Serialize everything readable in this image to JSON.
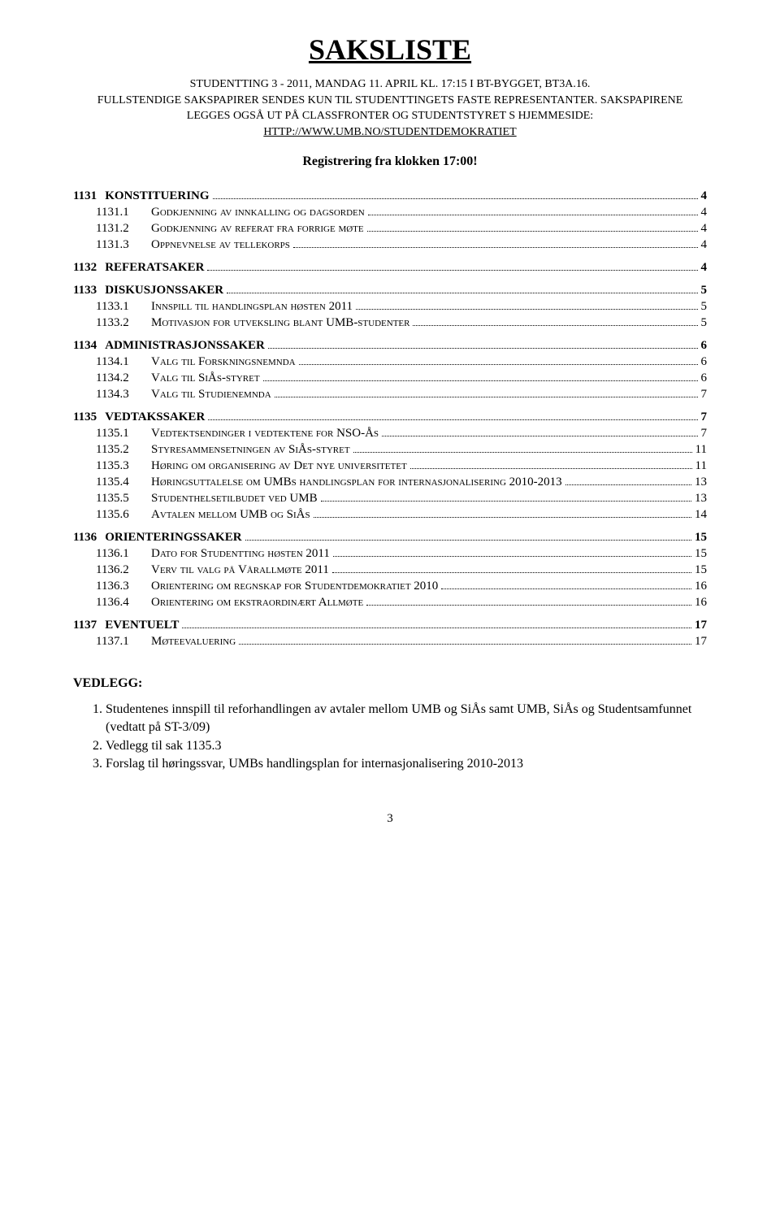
{
  "title": "SAKSLISTE",
  "subtitle_lines": [
    "STUDENTTING 3 - 2011, MANDAG 11. APRIL KL. 17:15 I BT-BYGGET, BT3A.16.",
    "FULLSTENDIGE SAKSPAPIRER SENDES KUN TIL STUDENTTINGETS FASTE REPRESENTANTER. SAKSPAPIRENE",
    "LEGGES OGSÅ UT PÅ CLASSFRONTER OG STUDENTSTYRET S HJEMMESIDE:"
  ],
  "subtitle_link": "HTTP://WWW.UMB.NO/STUDENTDEMOKRATIET",
  "registration": "Registrering fra klokken 17:00!",
  "toc": [
    {
      "level": 1,
      "num": "1131",
      "label": "KONSTITUERING",
      "page": "4"
    },
    {
      "level": 2,
      "num": "1131.1",
      "label": "Godkjenning av innkalling og dagsorden",
      "page": "4"
    },
    {
      "level": 2,
      "num": "1131.2",
      "label": "Godkjenning av referat fra forrige møte",
      "page": "4"
    },
    {
      "level": 2,
      "num": "1131.3",
      "label": "Oppnevnelse av tellekorps",
      "page": "4"
    },
    {
      "level": 1,
      "num": "1132",
      "label": "REFERATSAKER",
      "page": "4"
    },
    {
      "level": 1,
      "num": "1133",
      "label": "DISKUSJONSSAKER",
      "page": "5"
    },
    {
      "level": 2,
      "num": "1133.1",
      "label": "Innspill til handlingsplan høsten 2011",
      "page": "5"
    },
    {
      "level": 2,
      "num": "1133.2",
      "label": "Motivasjon for utveksling blant UMB-studenter",
      "page": "5"
    },
    {
      "level": 1,
      "num": "1134",
      "label": "ADMINISTRASJONSSAKER",
      "page": "6"
    },
    {
      "level": 2,
      "num": "1134.1",
      "label": "Valg til Forskningsnemnda",
      "page": "6"
    },
    {
      "level": 2,
      "num": "1134.2",
      "label": "Valg til SiÅs-styret",
      "page": "6"
    },
    {
      "level": 2,
      "num": "1134.3",
      "label": "Valg til Studienemnda",
      "page": "7"
    },
    {
      "level": 1,
      "num": "1135",
      "label": "VEDTAKSSAKER",
      "page": "7"
    },
    {
      "level": 2,
      "num": "1135.1",
      "label": "Vedtektsendinger i vedtektene for NSO-Ås",
      "page": "7"
    },
    {
      "level": 2,
      "num": "1135.2",
      "label": "Styresammensetningen av SiÅs-styret",
      "page": "11"
    },
    {
      "level": 2,
      "num": "1135.3",
      "label": "Høring om organisering av Det nye universitetet",
      "page": "11"
    },
    {
      "level": 2,
      "num": "1135.4",
      "label": "Høringsuttalelse om UMBs handlingsplan for internasjonalisering 2010-2013",
      "page": "13"
    },
    {
      "level": 2,
      "num": "1135.5",
      "label": "Studenthelsetilbudet ved UMB",
      "page": "13"
    },
    {
      "level": 2,
      "num": "1135.6",
      "label": "Avtalen mellom UMB og SiÅs",
      "page": "14"
    },
    {
      "level": 1,
      "num": "1136",
      "label": "ORIENTERINGSSAKER",
      "page": "15"
    },
    {
      "level": 2,
      "num": "1136.1",
      "label": "Dato for Studentting høsten 2011",
      "page": "15"
    },
    {
      "level": 2,
      "num": "1136.2",
      "label": "Verv til valg på Vårallmøte 2011",
      "page": "15"
    },
    {
      "level": 2,
      "num": "1136.3",
      "label": "Orientering om regnskap for Studentdemokratiet 2010",
      "page": "16"
    },
    {
      "level": 2,
      "num": "1136.4",
      "label": "Orientering om ekstraordinært Allmøte",
      "page": "16"
    },
    {
      "level": 1,
      "num": "1137",
      "label": "EVENTUELT",
      "page": "17"
    },
    {
      "level": 2,
      "num": "1137.1",
      "label": "Møteevaluering",
      "page": "17"
    }
  ],
  "vedlegg_label": "VEDLEGG:",
  "vedlegg": [
    "Studentenes innspill til reforhandlingen av avtaler mellom UMB og SiÅs samt UMB, SiÅs og Studentsamfunnet (vedtatt på ST-3/09)",
    "Vedlegg til sak 1135.3",
    "Forslag til høringssvar, UMBs handlingsplan for internasjonalisering 2010-2013"
  ],
  "page_number": "3"
}
